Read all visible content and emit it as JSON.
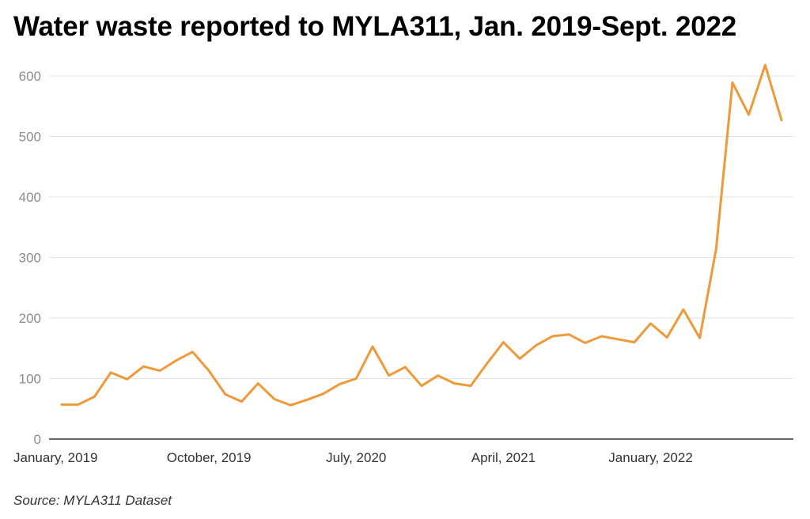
{
  "title": "Water waste reported to MYLA311, Jan. 2019-Sept. 2022",
  "source": "Source: MYLA311 Dataset",
  "chart_data": {
    "type": "line",
    "title": "Water waste reported to MYLA311, Jan. 2019-Sept. 2022",
    "xlabel": "",
    "ylabel": "",
    "ylim": [
      0,
      600
    ],
    "yticks": [
      0,
      100,
      200,
      300,
      400,
      500,
      600
    ],
    "grid": true,
    "line_color": "#ee9a3a",
    "x_tick_labels": [
      {
        "index": 0,
        "label": "January, 2019"
      },
      {
        "index": 9,
        "label": "October, 2019"
      },
      {
        "index": 18,
        "label": "July, 2020"
      },
      {
        "index": 27,
        "label": "April, 2021"
      },
      {
        "index": 36,
        "label": "January, 2022"
      }
    ],
    "x": [
      "2019-01",
      "2019-02",
      "2019-03",
      "2019-04",
      "2019-05",
      "2019-06",
      "2019-07",
      "2019-08",
      "2019-09",
      "2019-10",
      "2019-11",
      "2019-12",
      "2020-01",
      "2020-02",
      "2020-03",
      "2020-04",
      "2020-05",
      "2020-06",
      "2020-07",
      "2020-08",
      "2020-09",
      "2020-10",
      "2020-11",
      "2020-12",
      "2021-01",
      "2021-02",
      "2021-03",
      "2021-04",
      "2021-05",
      "2021-06",
      "2021-07",
      "2021-08",
      "2021-09",
      "2021-10",
      "2021-11",
      "2021-12",
      "2022-01",
      "2022-02",
      "2022-03",
      "2022-04",
      "2022-05",
      "2022-06",
      "2022-07",
      "2022-08",
      "2022-09"
    ],
    "series": [
      {
        "values": [
          57,
          57,
          70,
          110,
          99,
          120,
          113,
          130,
          144,
          113,
          74,
          62,
          92,
          66,
          56,
          65,
          75,
          91,
          100,
          153,
          105,
          119,
          88,
          105,
          92,
          88,
          125,
          160,
          133,
          155,
          170,
          173,
          159,
          170,
          165,
          160,
          191,
          168,
          214,
          167,
          314,
          589,
          536,
          618,
          527
        ]
      }
    ]
  }
}
